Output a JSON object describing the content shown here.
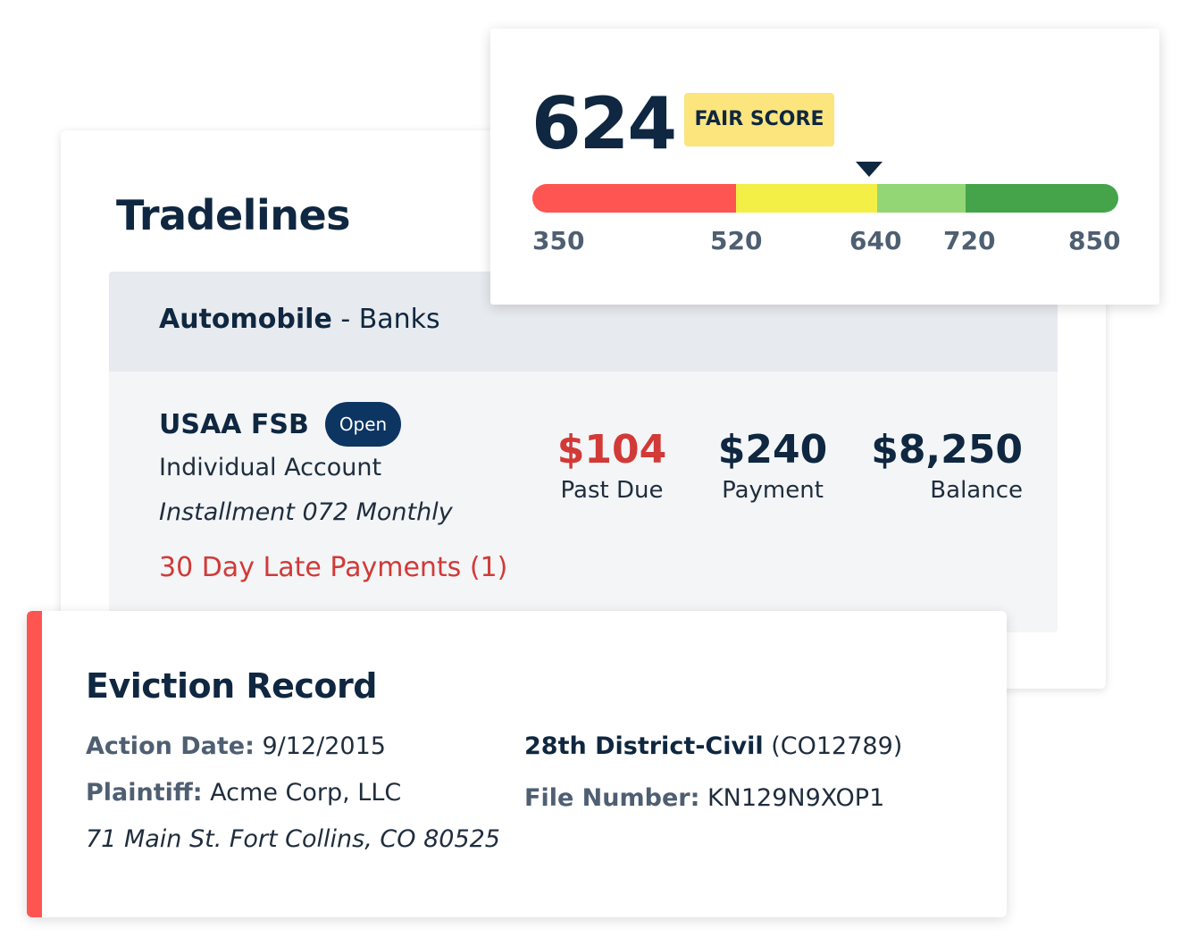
{
  "tradelines": {
    "title": "Tradelines",
    "category": {
      "name": "Automobile",
      "separator": " - ",
      "type": "Banks"
    },
    "account": {
      "creditor": "USAA FSB",
      "status": "Open",
      "account_type": "Individual Account",
      "terms": "Installment 072 Monthly",
      "late_payments": "30 Day Late Payments (1)",
      "past_due_value": "$104",
      "past_due_label": "Past Due",
      "payment_value": "$240",
      "payment_label": "Payment",
      "balance_value": "$8,250",
      "balance_label": "Balance"
    }
  },
  "score": {
    "value": "624",
    "rating": "FAIR SCORE",
    "scale_min": 350,
    "scale_max": 850,
    "ticks": [
      "350",
      "520",
      "640",
      "720",
      "850"
    ],
    "colors": {
      "poor": "#fe5552",
      "fair": "#f4ef47",
      "good": "#93d675",
      "excellent": "#45a44a"
    }
  },
  "eviction": {
    "title": "Eviction Record",
    "action_date_label": "Action Date:",
    "action_date": "9/12/2015",
    "plaintiff_label": "Plaintiff:",
    "plaintiff": "Acme Corp, LLC",
    "address": "71 Main St. Fort Collins, CO 80525",
    "court": "28th District-Civil",
    "court_code": "(CO12789)",
    "file_number_label": "File Number:",
    "file_number": "KN129N9XOP1",
    "accent_color": "#fe5552"
  }
}
